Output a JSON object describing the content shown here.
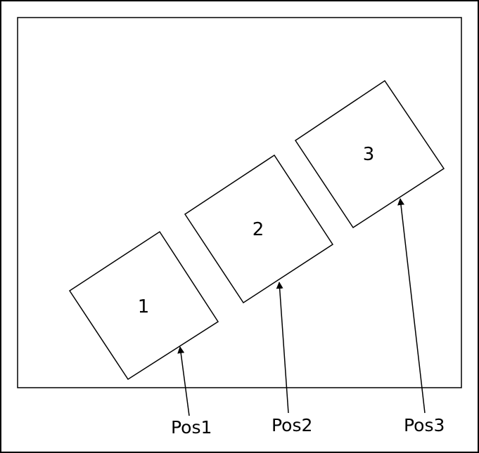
{
  "boxes": [
    {
      "label": "1"
    },
    {
      "label": "2"
    },
    {
      "label": "3"
    }
  ],
  "positions": [
    {
      "label": "Pos1"
    },
    {
      "label": "Pos2"
    },
    {
      "label": "Pos3"
    }
  ]
}
